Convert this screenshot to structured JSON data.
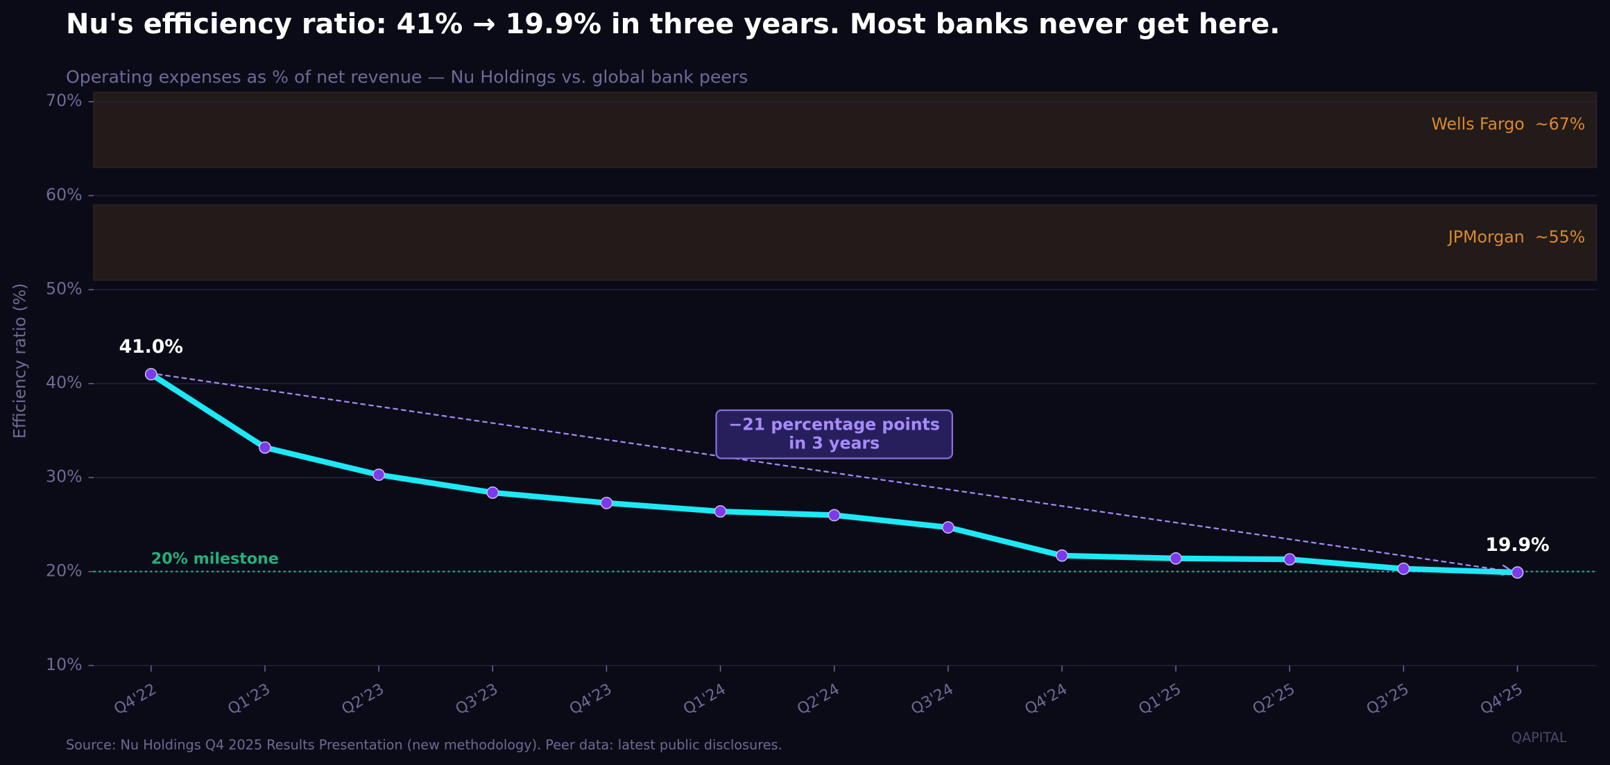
{
  "chart_data": {
    "type": "line",
    "title": "Nu's efficiency ratio: 41% → 19.9% in three years. Most banks never get here.",
    "subtitle": "Operating expenses as % of net revenue — Nu Holdings vs. global bank peers",
    "y_label": "Efficiency ratio (%)",
    "categories": [
      "Q4'22",
      "Q1'23",
      "Q2'23",
      "Q3'23",
      "Q4'23",
      "Q1'24",
      "Q2'24",
      "Q3'24",
      "Q4'24",
      "Q1'25",
      "Q2'25",
      "Q3'25",
      "Q4'25"
    ],
    "values": [
      41.0,
      33.2,
      30.3,
      28.4,
      27.3,
      26.4,
      26.0,
      24.7,
      21.7,
      21.4,
      21.3,
      20.3,
      19.9
    ],
    "value_labels": [
      "41.0%",
      null,
      null,
      null,
      null,
      null,
      null,
      null,
      null,
      null,
      null,
      null,
      "19.9%"
    ],
    "color": "#1de9f6",
    "marker_color": "#7c3aed",
    "ylim": [
      10,
      71
    ],
    "yticks": [
      {
        "value": 10,
        "label": "10%"
      },
      {
        "value": 20,
        "label": "20%"
      },
      {
        "value": 30,
        "label": "30%"
      },
      {
        "value": 40,
        "label": "40%"
      },
      {
        "value": 50,
        "label": "50%"
      },
      {
        "value": 60,
        "label": "60%"
      },
      {
        "value": 70,
        "label": "70%"
      }
    ],
    "grid": true,
    "bands": [
      {
        "label": "Wells Fargo  ~67%",
        "range": [
          63,
          71
        ]
      },
      {
        "label": "JPMorgan  ~55%",
        "range": [
          51,
          59
        ]
      }
    ],
    "milestone": {
      "value": 20,
      "label": "20% milestone",
      "color": "#22b07d"
    },
    "annotation": [
      "−21 percentage points",
      "in 3 years"
    ],
    "source": "Source: Nu Holdings Q4 2025 Results Presentation (new methodology). Peer data: latest public disclosures.",
    "watermark": "QAPITAL"
  }
}
